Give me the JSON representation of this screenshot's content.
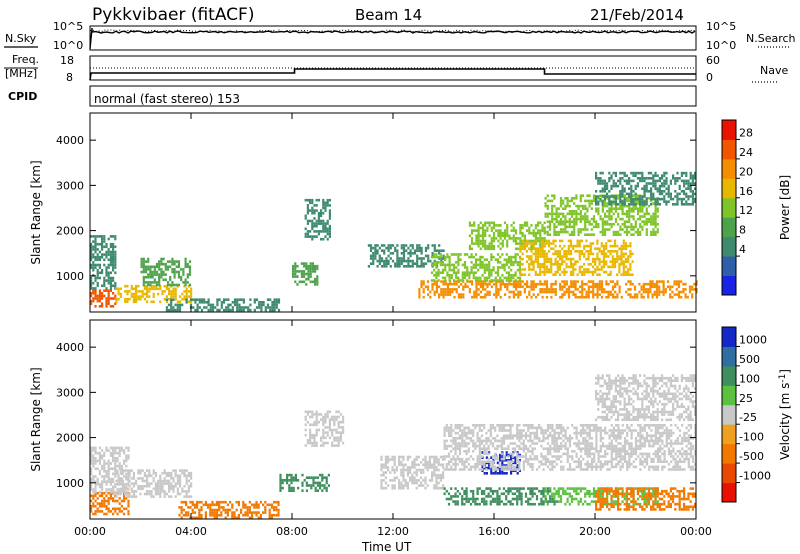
{
  "header": {
    "station": "Pykkvibaer (fitACF)",
    "beam": "Beam 14",
    "date": "21/Feb/2014"
  },
  "noise_panel": {
    "left_label": "N.Sky",
    "right_label": "N.Search",
    "left_ticks": [
      "10^5",
      "10^0"
    ],
    "right_ticks": [
      "10^5",
      "10^0"
    ],
    "right_legend_line": "dotted"
  },
  "freq_panel": {
    "left_label_line1": "Freq.",
    "left_label_line2": "[MHz]",
    "right_label": "Nave",
    "left_ticks": [
      "18",
      "8"
    ],
    "right_ticks": [
      "60",
      "0"
    ]
  },
  "cpid_panel": {
    "label": "CPID",
    "text": "normal (fast stereo) 153"
  },
  "chart_data": [
    {
      "type": "heatmap",
      "panel": "power",
      "ylabel": "Slant Range [km]",
      "yticks": [
        "4000",
        "3000",
        "2000",
        "1000"
      ],
      "ylim": [
        200,
        4600
      ],
      "xlim_hours": [
        0,
        24
      ],
      "colorbar": {
        "label": "Power [dB]",
        "ticks": [
          "28",
          "24",
          "20",
          "16",
          "12",
          "8",
          "4"
        ],
        "colors": [
          "#1a22e6",
          "#2e5fa8",
          "#3d8a6e",
          "#4ea24c",
          "#7fc428",
          "#e8b800",
          "#f58d00",
          "#f25500",
          "#e81400"
        ]
      },
      "echo_regions": [
        {
          "t0": 0.0,
          "t1": 1.0,
          "r0": 300,
          "r1": 700,
          "level": 28
        },
        {
          "t0": 0.0,
          "t1": 1.0,
          "r0": 700,
          "r1": 1900,
          "level": 10
        },
        {
          "t0": 1.0,
          "t1": 4.0,
          "r0": 400,
          "r1": 800,
          "level": 20
        },
        {
          "t0": 2.0,
          "t1": 4.0,
          "r0": 800,
          "r1": 1400,
          "level": 12
        },
        {
          "t0": 3.0,
          "t1": 7.5,
          "r0": 250,
          "r1": 500,
          "level": 8
        },
        {
          "t0": 8.0,
          "t1": 9.0,
          "r0": 800,
          "r1": 1300,
          "level": 12
        },
        {
          "t0": 8.5,
          "t1": 9.5,
          "r0": 1800,
          "r1": 2700,
          "level": 8
        },
        {
          "t0": 11.0,
          "t1": 14.0,
          "r0": 1200,
          "r1": 1700,
          "level": 10
        },
        {
          "t0": 13.0,
          "t1": 24.0,
          "r0": 500,
          "r1": 900,
          "level": 26
        },
        {
          "t0": 13.5,
          "t1": 17.0,
          "r0": 900,
          "r1": 1500,
          "level": 16
        },
        {
          "t0": 15.0,
          "t1": 18.0,
          "r0": 1600,
          "r1": 2200,
          "level": 18
        },
        {
          "t0": 17.0,
          "t1": 21.5,
          "r0": 1000,
          "r1": 1800,
          "level": 22
        },
        {
          "t0": 18.0,
          "t1": 22.5,
          "r0": 1900,
          "r1": 2800,
          "level": 16
        },
        {
          "t0": 20.0,
          "t1": 24.0,
          "r0": 2600,
          "r1": 3300,
          "level": 10
        }
      ]
    },
    {
      "type": "heatmap",
      "panel": "velocity",
      "ylabel": "Slant Range [km]",
      "xlabel": "Time UT",
      "yticks": [
        "4000",
        "3000",
        "2000",
        "1000"
      ],
      "xticks": [
        "00:00",
        "04:00",
        "08:00",
        "12:00",
        "16:00",
        "20:00",
        "00:00"
      ],
      "ylim": [
        200,
        4600
      ],
      "xlim_hours": [
        0,
        24
      ],
      "colorbar": {
        "label": "Velocity [m s",
        "label_sup": "-1",
        "label_end": "]",
        "ticks": [
          "1000",
          "500",
          "100",
          "25",
          "-25",
          "-100",
          "-500",
          "-1000"
        ],
        "colors": [
          "#1428c8",
          "#2e6ea0",
          "#3e8e5e",
          "#5cc040",
          "#c8c8c8",
          "#f0a020",
          "#f27800",
          "#e84800",
          "#e81000"
        ]
      },
      "echo_regions": [
        {
          "t0": 0.0,
          "t1": 1.5,
          "r0": 300,
          "r1": 800,
          "level": -500
        },
        {
          "t0": 0.0,
          "t1": 1.5,
          "r0": 800,
          "r1": 1800,
          "level": 20
        },
        {
          "t0": 1.0,
          "t1": 4.0,
          "r0": 700,
          "r1": 1300,
          "level": 0
        },
        {
          "t0": 3.5,
          "t1": 7.5,
          "r0": 250,
          "r1": 600,
          "level": -300
        },
        {
          "t0": 7.5,
          "t1": 9.5,
          "r0": 800,
          "r1": 1200,
          "level": 150
        },
        {
          "t0": 8.5,
          "t1": 10.0,
          "r0": 1800,
          "r1": 2600,
          "level": 0
        },
        {
          "t0": 11.5,
          "t1": 14.0,
          "r0": 900,
          "r1": 1600,
          "level": 0
        },
        {
          "t0": 14.0,
          "t1": 18.5,
          "r0": 500,
          "r1": 900,
          "level": 300
        },
        {
          "t0": 15.5,
          "t1": 17.0,
          "r0": 1200,
          "r1": 1700,
          "level": 1000
        },
        {
          "t0": 14.0,
          "t1": 24.0,
          "r0": 1300,
          "r1": 2300,
          "level": 0
        },
        {
          "t0": 18.0,
          "t1": 22.5,
          "r0": 500,
          "r1": 900,
          "level": 60
        },
        {
          "t0": 20.0,
          "t1": 24.0,
          "r0": 400,
          "r1": 900,
          "level": -200
        },
        {
          "t0": 20.0,
          "t1": 24.0,
          "r0": 2400,
          "r1": 3400,
          "level": 0
        }
      ]
    }
  ]
}
